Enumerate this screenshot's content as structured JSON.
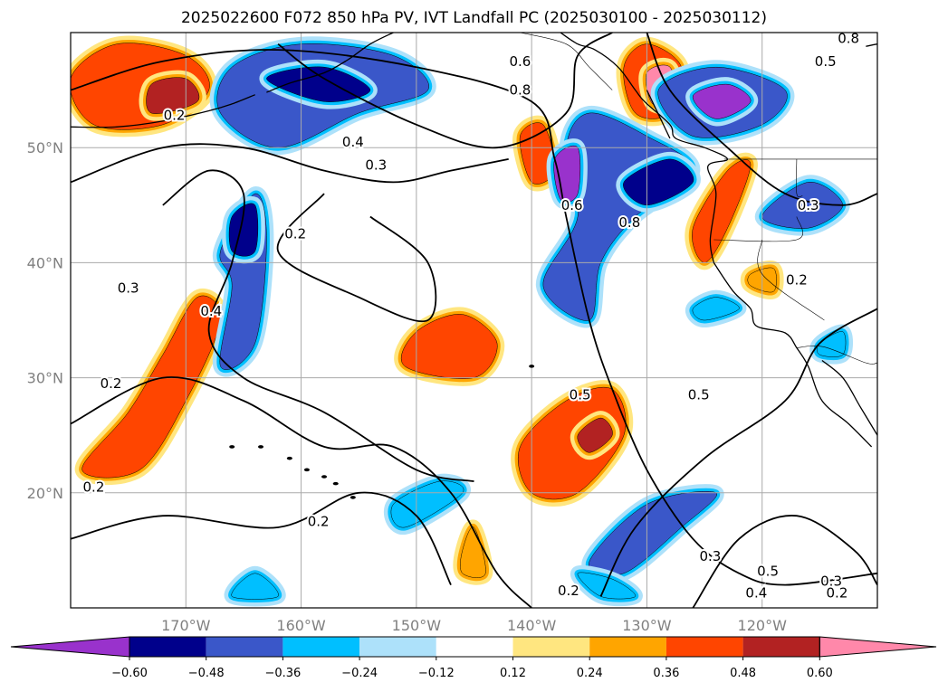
{
  "title": "2025022600 F072 850 hPa PV, IVT Landfall PC (2025030100 - 2025030112)",
  "map": {
    "lon_range": [
      -180,
      -110
    ],
    "lat_range": [
      10,
      60
    ],
    "lat_ticks": [
      {
        "value": 50,
        "label": "50°N"
      },
      {
        "value": 40,
        "label": "40°N"
      },
      {
        "value": 30,
        "label": "30°N"
      },
      {
        "value": 20,
        "label": "20°N"
      }
    ],
    "lon_ticks": [
      {
        "value": -170,
        "label": "170°W"
      },
      {
        "value": -160,
        "label": "160°W"
      },
      {
        "value": -150,
        "label": "150°W"
      },
      {
        "value": -140,
        "label": "140°W"
      },
      {
        "value": -130,
        "label": "130°W"
      },
      {
        "value": -120,
        "label": "120°W"
      }
    ],
    "grid": true
  },
  "colorbar": {
    "tick_labels": [
      "−0.60",
      "−0.48",
      "−0.36",
      "−0.24",
      "−0.12",
      "0.12",
      "0.24",
      "0.36",
      "0.48",
      "0.60"
    ],
    "colors": [
      "#9932cc",
      "#00008b",
      "#3a57c9",
      "#00bfff",
      "#ade1fa",
      "#ffffff",
      "#ffe680",
      "#ffa500",
      "#ff4500",
      "#b22222",
      "#ff88aa"
    ],
    "extend": "both"
  },
  "shaded_regions": [
    {
      "level": 0.36,
      "polygon": [
        [
          -180,
          56
        ],
        [
          -176,
          59
        ],
        [
          -170,
          58
        ],
        [
          -168,
          55
        ],
        [
          -172,
          52
        ],
        [
          -178,
          52
        ]
      ]
    },
    {
      "level": 0.48,
      "polygon": [
        [
          -173,
          55.5
        ],
        [
          -170,
          56
        ],
        [
          -169,
          54
        ],
        [
          -173,
          53
        ]
      ]
    },
    {
      "level": 0.36,
      "polygon": [
        [
          -179,
          22
        ],
        [
          -175,
          27
        ],
        [
          -172,
          32
        ],
        [
          -169,
          37
        ],
        [
          -167,
          35
        ],
        [
          -170,
          28
        ],
        [
          -174,
          22
        ]
      ]
    },
    {
      "level": 0.36,
      "polygon": [
        [
          -151,
          31
        ],
        [
          -150,
          34
        ],
        [
          -146,
          35.5
        ],
        [
          -143,
          33
        ],
        [
          -145,
          30
        ]
      ]
    },
    {
      "level": 0.36,
      "polygon": [
        [
          -141,
          24
        ],
        [
          -137,
          28
        ],
        [
          -133,
          29
        ],
        [
          -132,
          25
        ],
        [
          -136,
          20
        ],
        [
          -140,
          20
        ]
      ]
    },
    {
      "level": 0.48,
      "polygon": [
        [
          -136,
          25
        ],
        [
          -134,
          26.5
        ],
        [
          -133,
          25
        ],
        [
          -135,
          23.5
        ]
      ]
    },
    {
      "level": 0.36,
      "polygon": [
        [
          -132,
          57
        ],
        [
          -130,
          59
        ],
        [
          -127,
          57
        ],
        [
          -128,
          53
        ],
        [
          -131,
          53
        ]
      ]
    },
    {
      "level": 0.6,
      "polygon": [
        [
          -130,
          56.5
        ],
        [
          -128,
          57
        ],
        [
          -127.5,
          54
        ],
        [
          -129.5,
          53.8
        ]
      ]
    },
    {
      "level": 0.36,
      "polygon": [
        [
          -126,
          43
        ],
        [
          -123,
          48
        ],
        [
          -121,
          48.5
        ],
        [
          -123,
          43
        ],
        [
          -125,
          40
        ]
      ]
    },
    {
      "level": 0.36,
      "polygon": [
        [
          -141,
          51
        ],
        [
          -139,
          52
        ],
        [
          -138,
          48
        ],
        [
          -140,
          47
        ]
      ]
    },
    {
      "level": 0.24,
      "polygon": [
        [
          -121,
          39
        ],
        [
          -119,
          39.5
        ],
        [
          -119,
          37.5
        ],
        [
          -121,
          38
        ]
      ]
    },
    {
      "level": 0.24,
      "polygon": [
        [
          -146,
          15
        ],
        [
          -145,
          17
        ],
        [
          -144,
          13
        ],
        [
          -146,
          13
        ]
      ]
    },
    {
      "level": -0.36,
      "polygon": [
        [
          -166,
          57
        ],
        [
          -160,
          59
        ],
        [
          -152,
          58
        ],
        [
          -149,
          55
        ],
        [
          -155,
          53
        ],
        [
          -162,
          50
        ],
        [
          -167,
          53
        ]
      ]
    },
    {
      "level": -0.48,
      "polygon": [
        [
          -163,
          56
        ],
        [
          -158,
          57
        ],
        [
          -154,
          55
        ],
        [
          -158,
          54
        ]
      ]
    },
    {
      "level": -0.36,
      "polygon": [
        [
          -167,
          41
        ],
        [
          -164,
          46
        ],
        [
          -163,
          42
        ],
        [
          -164,
          33
        ],
        [
          -167,
          31
        ],
        [
          -166,
          38
        ]
      ]
    },
    {
      "level": -0.48,
      "polygon": [
        [
          -166,
          44
        ],
        [
          -164,
          45
        ],
        [
          -164,
          41
        ],
        [
          -166,
          41
        ]
      ]
    },
    {
      "level": -0.36,
      "polygon": [
        [
          -139,
          38
        ],
        [
          -136,
          44
        ],
        [
          -137,
          50
        ],
        [
          -135,
          53
        ],
        [
          -130,
          51
        ],
        [
          -126,
          48
        ],
        [
          -131,
          44
        ],
        [
          -134,
          40
        ],
        [
          -135,
          35
        ]
      ]
    },
    {
      "level": -0.6,
      "polygon": [
        [
          -138,
          49
        ],
        [
          -136,
          50
        ],
        [
          -136,
          46
        ],
        [
          -137.5,
          45.5
        ]
      ]
    },
    {
      "level": -0.48,
      "polygon": [
        [
          -132,
          47
        ],
        [
          -128,
          49
        ],
        [
          -126,
          47
        ],
        [
          -130,
          45
        ]
      ]
    },
    {
      "level": -0.36,
      "polygon": [
        [
          -129,
          55
        ],
        [
          -124,
          57
        ],
        [
          -118,
          55
        ],
        [
          -120,
          52
        ],
        [
          -126,
          51
        ]
      ]
    },
    {
      "level": -0.6,
      "polygon": [
        [
          -126,
          54.5
        ],
        [
          -123,
          55.5
        ],
        [
          -121,
          54
        ],
        [
          -124,
          52.5
        ]
      ]
    },
    {
      "level": -0.36,
      "polygon": [
        [
          -120,
          44
        ],
        [
          -116,
          47
        ],
        [
          -113,
          45
        ],
        [
          -116,
          43
        ]
      ]
    },
    {
      "level": -0.36,
      "polygon": [
        [
          -135,
          14
        ],
        [
          -130,
          19
        ],
        [
          -124,
          20
        ],
        [
          -127,
          17
        ],
        [
          -132,
          13
        ]
      ]
    },
    {
      "level": -0.24,
      "polygon": [
        [
          -152,
          19
        ],
        [
          -148,
          21
        ],
        [
          -146,
          20
        ],
        [
          -151,
          17
        ]
      ]
    },
    {
      "level": -0.24,
      "polygon": [
        [
          -136,
          13
        ],
        [
          -134,
          11
        ],
        [
          -131,
          11
        ],
        [
          -133,
          12.5
        ]
      ]
    },
    {
      "level": -0.24,
      "polygon": [
        [
          -166,
          11
        ],
        [
          -164,
          13
        ],
        [
          -162,
          11
        ]
      ]
    },
    {
      "level": -0.24,
      "polygon": [
        [
          -126,
          36
        ],
        [
          -124,
          37
        ],
        [
          -122,
          36
        ],
        [
          -125,
          35
        ]
      ]
    },
    {
      "level": -0.24,
      "polygon": [
        [
          -115,
          33
        ],
        [
          -113,
          34
        ],
        [
          -113,
          32
        ],
        [
          -115,
          32
        ]
      ]
    }
  ],
  "contour_lines": [
    {
      "points": [
        [
          -180,
          55
        ],
        [
          -172,
          57.5
        ],
        [
          -162,
          58.5
        ],
        [
          -150,
          57
        ],
        [
          -140,
          54
        ],
        [
          -138,
          49
        ],
        [
          -137,
          44
        ],
        [
          -135,
          35
        ],
        [
          -133,
          29
        ],
        [
          -130,
          22
        ],
        [
          -126,
          16
        ],
        [
          -122,
          13
        ],
        [
          -118,
          12
        ],
        [
          -110,
          13
        ]
      ]
    },
    {
      "points": [
        [
          -162,
          59
        ],
        [
          -158,
          56
        ],
        [
          -150,
          52
        ],
        [
          -143,
          50
        ],
        [
          -137,
          53
        ],
        [
          -136,
          58
        ],
        [
          -133,
          60
        ]
      ]
    },
    {
      "points": [
        [
          -172,
          45
        ],
        [
          -168,
          48
        ],
        [
          -165,
          46
        ],
        [
          -166,
          40
        ],
        [
          -168,
          34
        ],
        [
          -165,
          30
        ],
        [
          -158,
          27
        ],
        [
          -150,
          22
        ],
        [
          -145,
          21
        ]
      ]
    },
    {
      "points": [
        [
          -180,
          26
        ],
        [
          -172,
          30
        ],
        [
          -165,
          28
        ],
        [
          -158,
          24
        ],
        [
          -152,
          24
        ],
        [
          -147,
          20
        ],
        [
          -143,
          13
        ],
        [
          -140,
          10
        ]
      ]
    },
    {
      "points": [
        [
          -180,
          16
        ],
        [
          -172,
          18
        ],
        [
          -162,
          17
        ],
        [
          -155,
          20
        ],
        [
          -150,
          18
        ],
        [
          -147,
          12
        ]
      ]
    },
    {
      "points": [
        [
          -154,
          44
        ],
        [
          -149,
          40
        ],
        [
          -149,
          35
        ],
        [
          -155,
          37
        ],
        [
          -162,
          41
        ],
        [
          -158,
          46
        ]
      ]
    },
    {
      "points": [
        [
          -130,
          60
        ],
        [
          -128,
          55
        ],
        [
          -123,
          50
        ],
        [
          -118,
          46
        ],
        [
          -113,
          45
        ],
        [
          -110,
          46
        ]
      ]
    },
    {
      "points": [
        [
          -134,
          11
        ],
        [
          -131,
          17
        ],
        [
          -125,
          23
        ],
        [
          -118,
          28
        ],
        [
          -115,
          33
        ],
        [
          -110,
          36
        ]
      ]
    },
    {
      "points": [
        [
          -126,
          10
        ],
        [
          -122,
          16
        ],
        [
          -117,
          18
        ],
        [
          -112,
          15
        ],
        [
          -110,
          12
        ]
      ]
    },
    {
      "points": [
        [
          -180,
          47
        ],
        [
          -172,
          50
        ],
        [
          -165,
          50
        ],
        [
          -158,
          48
        ],
        [
          -152,
          47
        ],
        [
          -147,
          48
        ],
        [
          -142,
          49
        ]
      ]
    }
  ],
  "contour_labels": [
    {
      "text": "0.2",
      "lon": -171,
      "lat": 52.8
    },
    {
      "text": "0.6",
      "lon": -141,
      "lat": 57.5
    },
    {
      "text": "0.8",
      "lon": -141,
      "lat": 55
    },
    {
      "text": "0.4",
      "lon": -155.5,
      "lat": 50.5
    },
    {
      "text": "0.3",
      "lon": -153.5,
      "lat": 48.5
    },
    {
      "text": "0.2",
      "lon": -160.5,
      "lat": 42.5
    },
    {
      "text": "0.3",
      "lon": -175,
      "lat": 37.8
    },
    {
      "text": "0.4",
      "lon": -167.8,
      "lat": 35.8
    },
    {
      "text": "0.2",
      "lon": -176.5,
      "lat": 29.5
    },
    {
      "text": "0.2",
      "lon": -178,
      "lat": 20.5
    },
    {
      "text": "0.2",
      "lon": -158.5,
      "lat": 17.5
    },
    {
      "text": "0.6",
      "lon": -136.5,
      "lat": 45
    },
    {
      "text": "0.8",
      "lon": -131.5,
      "lat": 43.5
    },
    {
      "text": "0.5",
      "lon": -135.8,
      "lat": 28.5
    },
    {
      "text": "0.5",
      "lon": -125.5,
      "lat": 28.5
    },
    {
      "text": "0.3",
      "lon": -124.5,
      "lat": 14.5
    },
    {
      "text": "0.2",
      "lon": -136.8,
      "lat": 11.5
    },
    {
      "text": "0.3",
      "lon": -116,
      "lat": 45
    },
    {
      "text": "0.2",
      "lon": -117,
      "lat": 38.5
    },
    {
      "text": "0.5",
      "lon": -119.5,
      "lat": 13.2
    },
    {
      "text": "0.4",
      "lon": -120.5,
      "lat": 11.3
    },
    {
      "text": "0.3",
      "lon": -114,
      "lat": 12.3
    },
    {
      "text": "0.2",
      "lon": -113.5,
      "lat": 11.3
    },
    {
      "text": "0.5",
      "lon": -114.5,
      "lat": 57.5
    },
    {
      "text": "0.8",
      "lon": -112.5,
      "lat": 59.5
    }
  ],
  "coastlines": [
    [
      [
        -124.2,
        40
      ],
      [
        -124.5,
        42
      ],
      [
        -124,
        46
      ],
      [
        -124.7,
        48.4
      ],
      [
        -123,
        49
      ],
      [
        -125,
        50
      ],
      [
        -127.5,
        50.8
      ],
      [
        -128,
        52
      ],
      [
        -130.2,
        54
      ],
      [
        -131,
        55
      ],
      [
        -132.5,
        57
      ],
      [
        -134.5,
        58.5
      ],
      [
        -136,
        59
      ],
      [
        -137.5,
        60
      ]
    ],
    [
      [
        -124.2,
        40
      ],
      [
        -122.5,
        37.5
      ],
      [
        -121,
        36
      ],
      [
        -120.5,
        34.5
      ],
      [
        -118,
        33.9
      ],
      [
        -117,
        32.6
      ],
      [
        -116,
        31
      ],
      [
        -114.8,
        28
      ],
      [
        -112.5,
        26
      ],
      [
        -110.5,
        24
      ]
    ],
    [
      [
        -114.8,
        31.5
      ],
      [
        -113,
        30
      ],
      [
        -111.5,
        27.5
      ],
      [
        -110,
        25
      ]
    ],
    [
      [
        -110,
        59
      ],
      [
        -111,
        58.8
      ]
    ],
    [
      [
        -163,
        54.8
      ],
      [
        -161,
        55.6
      ],
      [
        -158,
        56.5
      ],
      [
        -156,
        57.6
      ],
      [
        -154,
        59
      ],
      [
        -152,
        60
      ]
    ],
    [
      [
        -180,
        51.8
      ],
      [
        -176,
        51.8
      ],
      [
        -172,
        52.3
      ],
      [
        -168,
        53.2
      ],
      [
        -166,
        53.8
      ],
      [
        -164,
        54.6
      ]
    ],
    [
      [
        -130,
        55
      ],
      [
        -128,
        50.8
      ]
    ]
  ],
  "islands": [
    {
      "lon": -155.5,
      "lat": 19.6
    },
    {
      "lon": -157.0,
      "lat": 20.8
    },
    {
      "lon": -158.0,
      "lat": 21.4
    },
    {
      "lon": -159.5,
      "lat": 22.0
    },
    {
      "lon": -161.0,
      "lat": 23.0
    },
    {
      "lon": -163.5,
      "lat": 24.0
    },
    {
      "lon": -166.0,
      "lat": 24.0
    },
    {
      "lon": -140.0,
      "lat": 31.0
    }
  ],
  "borders": [
    [
      [
        -123.3,
        49
      ],
      [
        -110,
        49
      ]
    ],
    [
      [
        -124.2,
        42
      ],
      [
        -117,
        42
      ],
      [
        -117,
        44
      ]
    ],
    [
      [
        -120,
        42
      ],
      [
        -120,
        39
      ],
      [
        -114.6,
        35
      ]
    ],
    [
      [
        -117,
        32.6
      ],
      [
        -114.7,
        32.7
      ],
      [
        -111,
        31.3
      ],
      [
        -110,
        31.3
      ]
    ],
    [
      [
        -117,
        49
      ],
      [
        -117,
        46
      ],
      [
        -116.5,
        45.8
      ]
    ],
    [
      [
        -141,
        60
      ],
      [
        -137,
        59
      ],
      [
        -135,
        57
      ],
      [
        -133,
        55
      ]
    ]
  ]
}
